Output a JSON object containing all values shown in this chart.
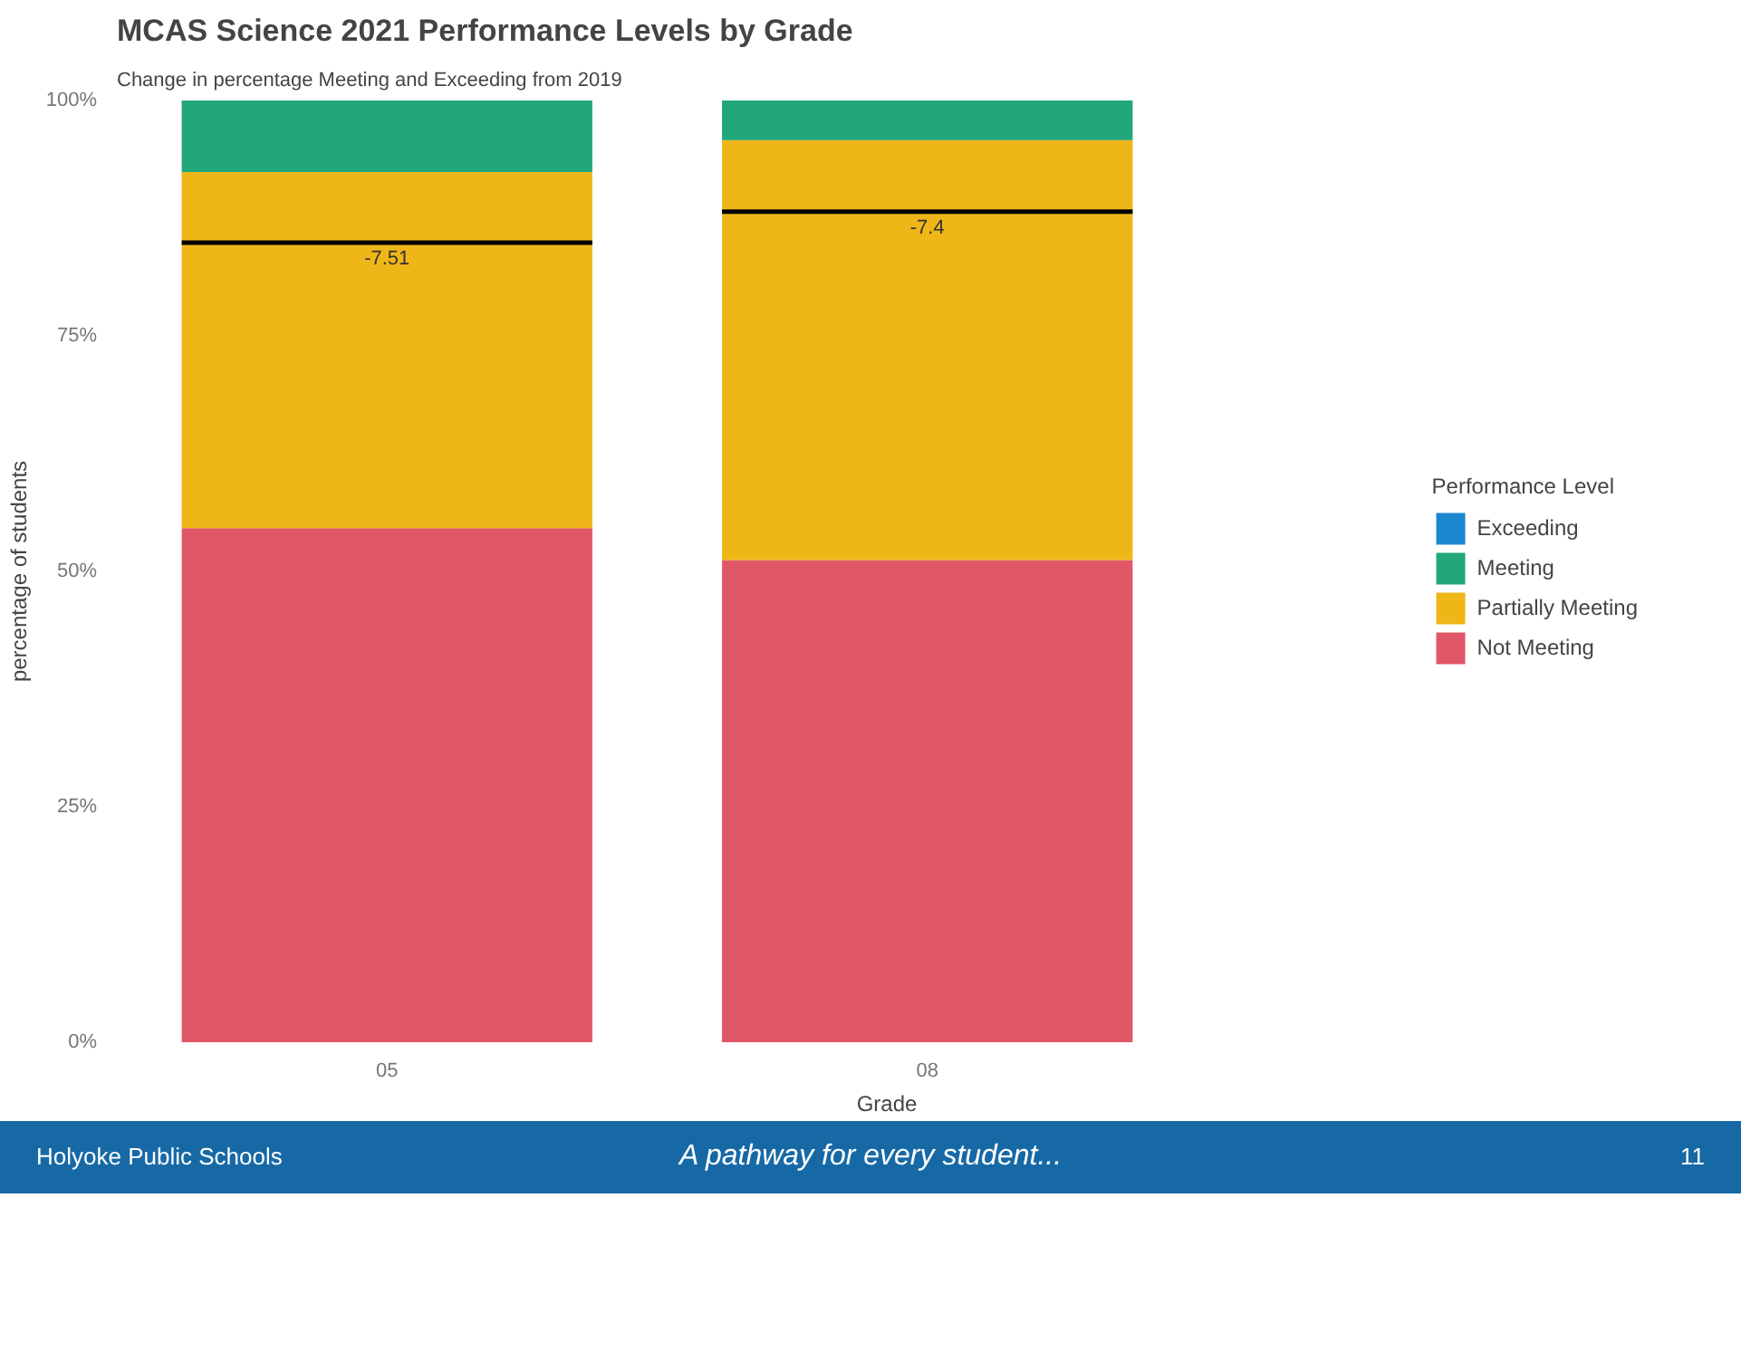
{
  "chart_data": {
    "type": "bar",
    "stacked": true,
    "title": "MCAS Science 2021 Performance Levels by Grade",
    "subtitle": "Change in percentage Meeting and Exceeding from 2019",
    "xlabel": "Grade",
    "ylabel": "percentage of students",
    "legend_title": "Performance Level",
    "legend": "right",
    "grid": false,
    "categories": [
      "05",
      "08"
    ],
    "series": [
      {
        "name": "Not Meeting",
        "color": "#e05767",
        "values": [
          54.6,
          51.2
        ]
      },
      {
        "name": "Partially Meeting",
        "color": "#efb618",
        "values": [
          37.8,
          44.6
        ]
      },
      {
        "name": "Meeting",
        "color": "#22a67c",
        "values": [
          7.6,
          4.2
        ]
      },
      {
        "name": "Exceeding",
        "color": "#1b87d0",
        "values": [
          0,
          0
        ]
      }
    ],
    "ref_lines": [
      {
        "axis": "y",
        "value": 84.9,
        "color": "#000000"
      },
      {
        "axis": "y",
        "value": 88.2,
        "color": "#000000"
      }
    ],
    "ylim": [
      0,
      100
    ],
    "yticks": [
      {
        "value": 0,
        "label": "0%"
      },
      {
        "value": 25,
        "label": "25%"
      },
      {
        "value": 50,
        "label": "50%"
      },
      {
        "value": 75,
        "label": "75%"
      },
      {
        "value": 100,
        "label": "100%"
      }
    ],
    "annotations": [
      "-7.51",
      "-7.4",
      "Holyoke Public Schools",
      "A pathway for every student...",
      "11"
    ]
  }
}
